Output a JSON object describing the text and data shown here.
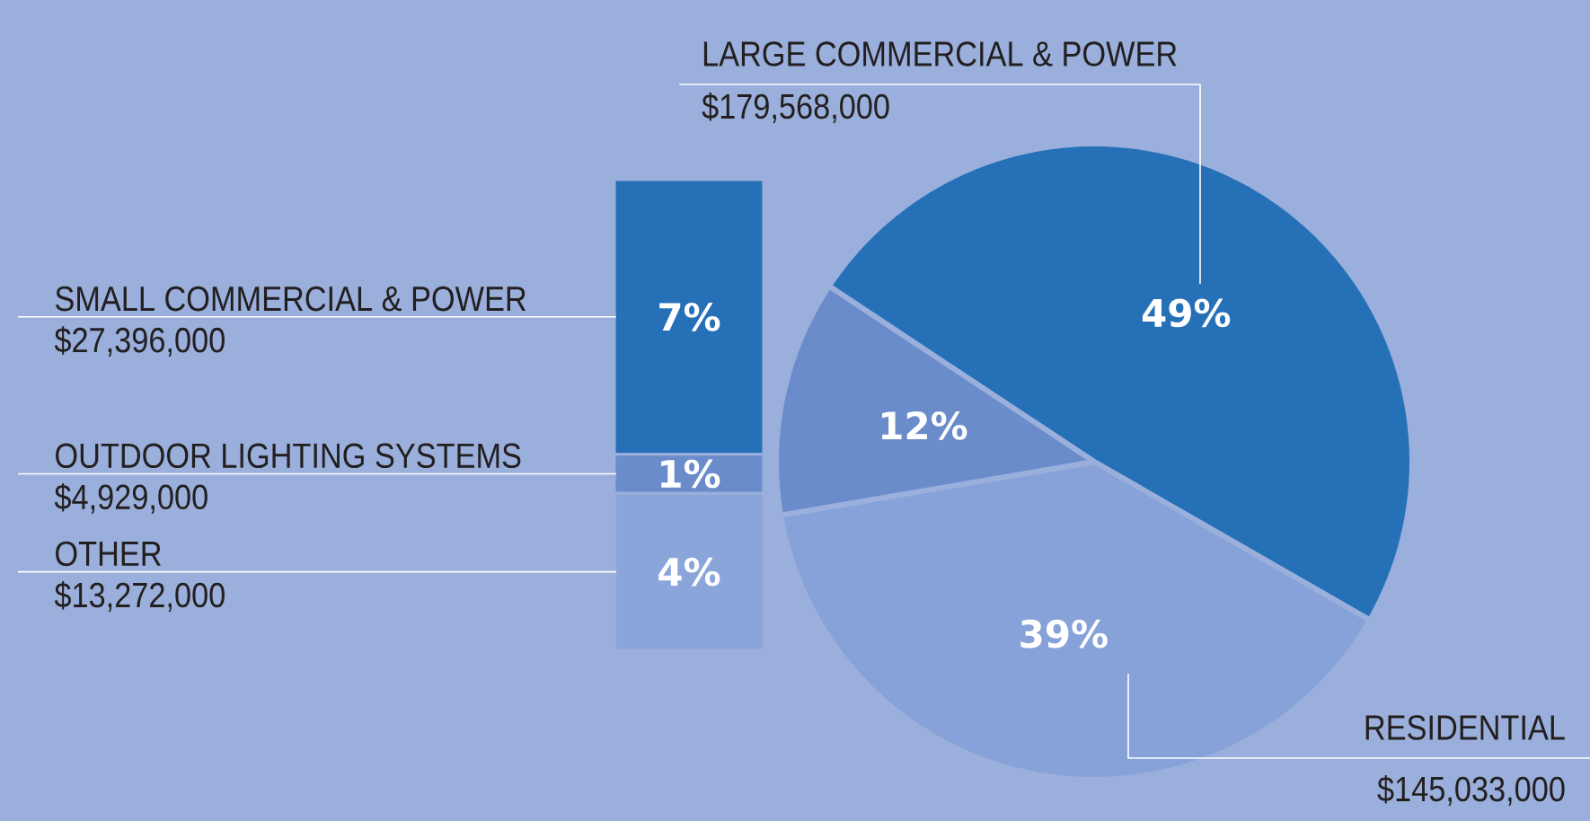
{
  "chart_data": [
    {
      "type": "pie",
      "categories": [
        "LARGE COMMERCIAL & POWER",
        "RESIDENTIAL",
        null
      ],
      "values": [
        49,
        39,
        12
      ],
      "colors": [
        "#2670b8",
        "#87a2d8",
        "#6a8ccb"
      ],
      "value_labels": [
        "49%",
        "39%",
        "12%"
      ],
      "annotations": [
        "$179,568,000",
        "$145,033,000"
      ]
    },
    {
      "type": "bar",
      "stacked": true,
      "categories": [
        null
      ],
      "series": [
        {
          "name": "OTHER",
          "color": "#8aa5da",
          "values": [
            4
          ],
          "value_labels": [
            "4%"
          ]
        },
        {
          "name": "OUTDOOR LIGHTING SYSTEMS",
          "color": "#6a8ccb",
          "values": [
            1
          ],
          "value_labels": [
            "1%"
          ]
        },
        {
          "name": "SMALL COMMERCIAL & POWER",
          "color": "#2670b8",
          "values": [
            7
          ],
          "value_labels": [
            "7%"
          ]
        }
      ],
      "annotations": [
        "$13,272,000",
        "$4,929,000",
        "$27,396,000"
      ]
    }
  ]
}
